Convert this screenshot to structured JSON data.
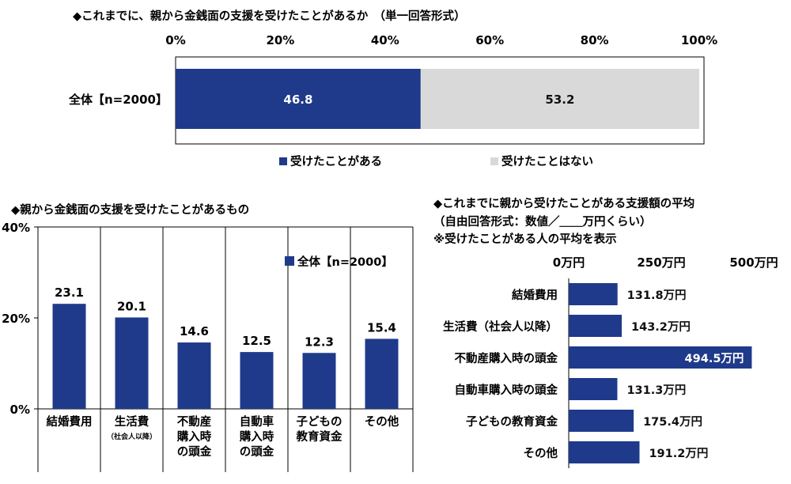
{
  "chart_data": [
    {
      "type": "bar",
      "orientation": "horizontal-stacked-100",
      "title": "◆これまでに、親から金銭面の支援を受けたことがあるか　（単一回答形式）",
      "axis_ticks": [
        "0%",
        "20%",
        "40%",
        "60%",
        "80%",
        "100%"
      ],
      "xlim": [
        0,
        100
      ],
      "categories": [
        "全体【n=2000】"
      ],
      "series": [
        {
          "name": "受けたことがある",
          "values": [
            46.8
          ],
          "color": "#1f3a8a"
        },
        {
          "name": "受けたことはない",
          "values": [
            53.2
          ],
          "color": "#d9d9d9"
        }
      ],
      "legend": "bottom"
    },
    {
      "type": "bar",
      "orientation": "vertical",
      "title": "◆親から金銭面の支援を受けたことがあるもの",
      "categories": [
        "結婚費用",
        "生活費",
        "不動産購入時の頭金",
        "自動車購入時の頭金",
        "子どもの教育資金",
        "その他"
      ],
      "category_lines": [
        [
          "結婚費用"
        ],
        [
          "生活費"
        ],
        [
          "不動産",
          "購入時",
          "の頭金"
        ],
        [
          "自動車",
          "購入時",
          "の頭金"
        ],
        [
          "子どもの",
          "教育資金"
        ],
        [
          "その他"
        ]
      ],
      "category_notes": [
        "",
        "（社会人以降）",
        "",
        "",
        "",
        ""
      ],
      "axis_ticks": [
        "40%",
        "20%",
        "0%"
      ],
      "ylim": [
        0,
        40
      ],
      "series": [
        {
          "name": "全体【n=2000】",
          "values": [
            23.1,
            20.1,
            14.6,
            12.5,
            12.3,
            15.4
          ],
          "color": "#1f3a8a"
        }
      ],
      "value_labels": [
        "23.1",
        "20.1",
        "14.6",
        "12.5",
        "12.3",
        "15.4"
      ],
      "legend": "top-right",
      "grid": false
    },
    {
      "type": "bar",
      "orientation": "horizontal",
      "title_lines": [
        "◆これまでに親から受けたことがある支援額の平均",
        "（自由回答形式：数値／＿＿万円くらい）",
        "※受けたことがある人の平均を表示"
      ],
      "axis_ticks": [
        "0万円",
        "250万円",
        "500万円"
      ],
      "xlim": [
        0,
        500
      ],
      "categories": [
        "結婚費用",
        "生活費（社会人以降）",
        "不動産購入時の頭金",
        "自動車購入時の頭金",
        "子どもの教育資金",
        "その他"
      ],
      "values": [
        131.8,
        143.2,
        494.5,
        131.3,
        175.4,
        191.2
      ],
      "value_labels": [
        "131.8万円",
        "143.2万円",
        "494.5万円",
        "131.3万円",
        "175.4万円",
        "191.2万円"
      ],
      "color": "#1f3a8a"
    }
  ]
}
